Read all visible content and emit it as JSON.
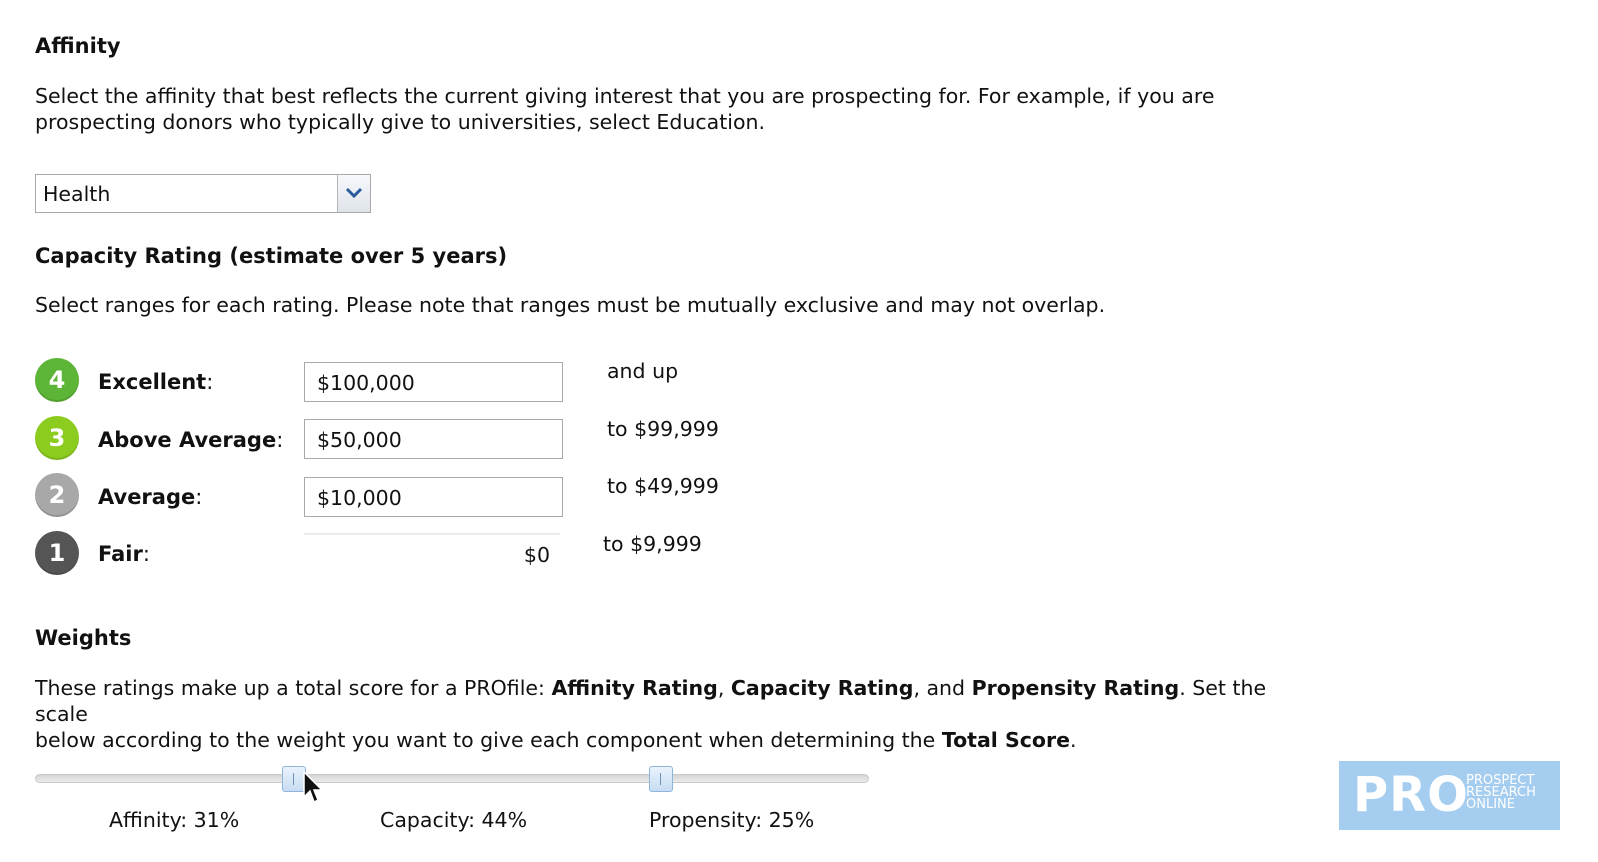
{
  "affinity": {
    "title": "Affinity",
    "description": "Select the affinity that best reflects the current giving interest that you are prospecting for. For example, if you are prospecting donors who typically give to universities, select Education.",
    "selected": "Health"
  },
  "capacity": {
    "title": "Capacity Rating (estimate over 5 years)",
    "description": "Select ranges for each rating. Please note that ranges must be mutually exclusive and may not overlap.",
    "ratings": [
      {
        "num": "4",
        "label": "Excellent",
        "value": "$100,000",
        "suffix": "and up",
        "color": "#5cb536"
      },
      {
        "num": "3",
        "label": "Above Average",
        "value": "$50,000",
        "suffix": "to $99,999",
        "color": "#8ccc1e"
      },
      {
        "num": "2",
        "label": "Average",
        "value": "$10,000",
        "suffix": "to $49,999",
        "color": "#a8a8a8"
      },
      {
        "num": "1",
        "label": "Fair",
        "value": "$0",
        "suffix": "to $9,999",
        "color": "#555555"
      }
    ],
    "colon": ":"
  },
  "weights": {
    "title": "Weights",
    "line1_a": "These ratings make up a total score for a PROfile: ",
    "line1_b": "Affinity Rating",
    "line1_c": ", ",
    "line1_d": "Capacity Rating",
    "line1_e": ", and ",
    "line1_f": "Propensity Rating",
    "line1_g": ". Set the scale",
    "line2_a": "below according to the weight you want to give each component when determining the ",
    "line2_b": "Total Score",
    "line2_c": ".",
    "affinity_label": "Affinity: 31%",
    "capacity_label": "Capacity: 44%",
    "propensity_label": "Propensity: 25%",
    "affinity_pct": 31,
    "capacity_pct": 44,
    "propensity_pct": 25
  },
  "logo": {
    "big": "PRO",
    "line1": "PROSPECT",
    "line2": "RESEARCH",
    "line3": "ONLINE"
  },
  "icons": {
    "dropdown": "chevron-down-icon",
    "cursor": "mouse-pointer-icon"
  }
}
